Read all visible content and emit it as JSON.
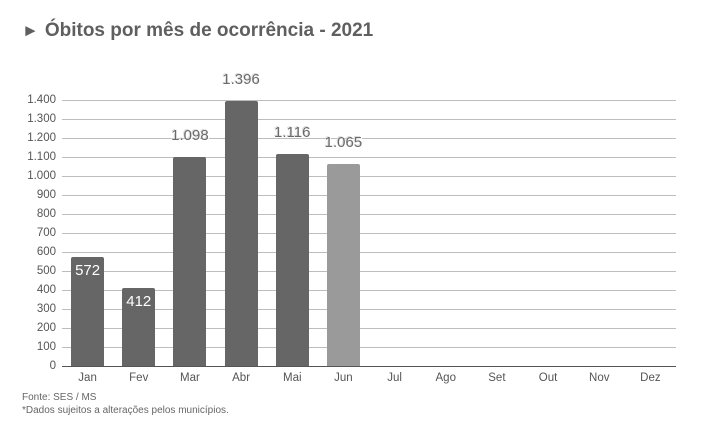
{
  "header": {
    "arrow_icon": "triangle-right-icon",
    "title": "Óbitos por mês de ocorrência - 2021"
  },
  "chart_data": {
    "type": "bar",
    "title": "Óbitos por mês de ocorrência - 2021",
    "categories": [
      "Jan",
      "Fev",
      "Mar",
      "Abr",
      "Mai",
      "Jun",
      "Jul",
      "Ago",
      "Set",
      "Out",
      "Nov",
      "Dez"
    ],
    "values": [
      572,
      412,
      1098,
      1396,
      1116,
      1065,
      null,
      null,
      null,
      null,
      null,
      null
    ],
    "value_labels": [
      "572",
      "412",
      "1.098",
      "1.396",
      "1.116",
      "1.065",
      "",
      "",
      "",
      "",
      "",
      ""
    ],
    "xlabel": "",
    "ylabel": "",
    "ylim": [
      0,
      1400
    ],
    "yticks": [
      "0",
      "100",
      "200",
      "300",
      "400",
      "500",
      "600",
      "700",
      "800",
      "900",
      "1.000",
      "1.100",
      "1.200",
      "1.300",
      "1.400"
    ],
    "grid": true,
    "legend": null,
    "colors": {
      "bar": "#666666",
      "bar_partial": "#9a9a9a",
      "grid": "#bdbdbd"
    },
    "annotations": [
      "Jun bar shown in lighter gray (partial month)"
    ]
  },
  "footer": {
    "source": "Fonte: SES / MS",
    "note": "*Dados sujeitos a alterações pelos municípios."
  }
}
